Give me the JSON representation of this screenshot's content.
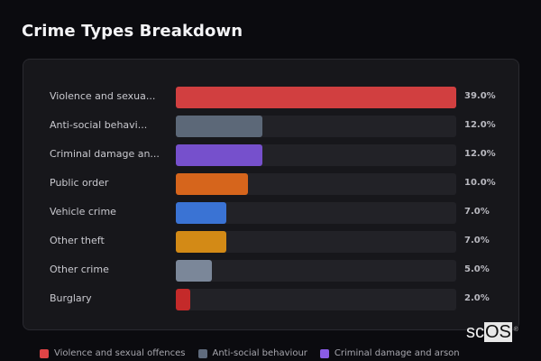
{
  "title": "Crime Types Breakdown",
  "chart_data": {
    "type": "bar",
    "orientation": "horizontal",
    "title": "Crime Types Breakdown",
    "categories": [
      "Violence and sexual offences",
      "Anti-social behaviour",
      "Criminal damage and arson",
      "Public order",
      "Vehicle crime",
      "Other theft",
      "Other crime",
      "Burglary"
    ],
    "display_labels": [
      "Violence and sexua...",
      "Anti-social behavi...",
      "Criminal damage an...",
      "Public order",
      "Vehicle crime",
      "Other theft",
      "Other crime",
      "Burglary"
    ],
    "values": [
      39.0,
      12.0,
      12.0,
      10.0,
      7.0,
      7.0,
      5.0,
      2.0
    ],
    "value_labels": [
      "39.0%",
      "12.0%",
      "12.0%",
      "10.0%",
      "7.0%",
      "7.0%",
      "5.0%",
      "2.0%"
    ],
    "colors": [
      "#d13f40",
      "#5c6878",
      "#7650cc",
      "#d6651c",
      "#3a73d4",
      "#d38a16",
      "#7b8799",
      "#c42a2a"
    ],
    "unit": "%",
    "scale_max": 39.0,
    "xlabel": "",
    "ylabel": "",
    "grid": false,
    "legend": {
      "position": "bottom",
      "entries": [
        {
          "label": "Violence and sexual offences",
          "color": "#e04446"
        },
        {
          "label": "Anti-social behaviour",
          "color": "#5f6b7d"
        },
        {
          "label": "Criminal damage and arson",
          "color": "#8a5ce6"
        }
      ]
    }
  },
  "watermark": {
    "prefix": "sc",
    "boxed": "OS",
    "mark": "®"
  }
}
